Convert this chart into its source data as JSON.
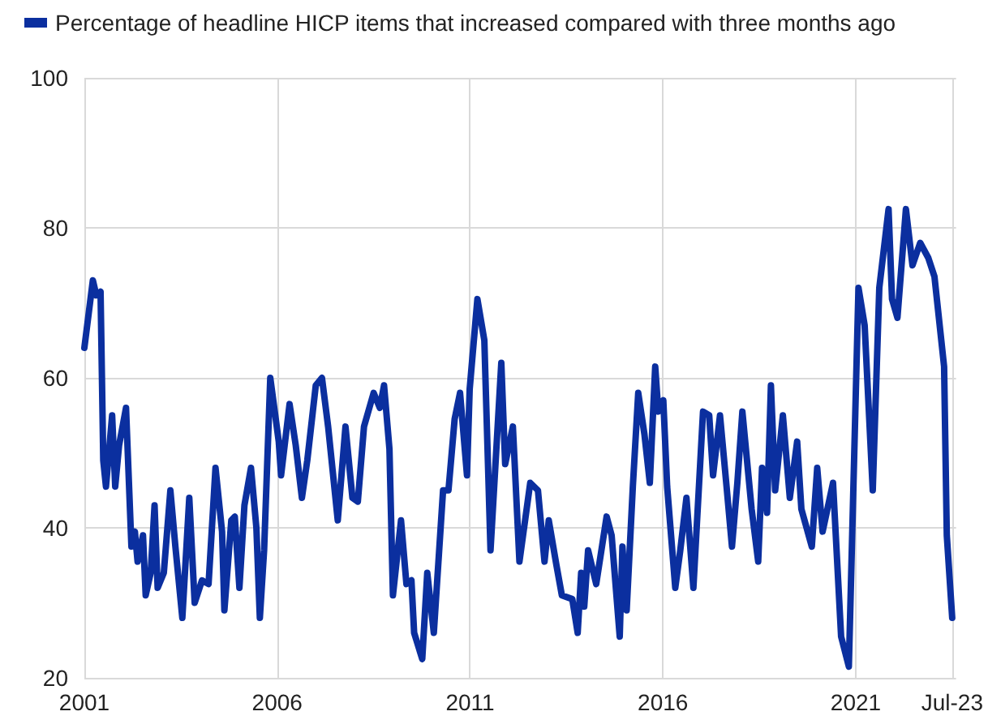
{
  "chart_data": {
    "type": "line",
    "xlim": [
      2001,
      2023.6
    ],
    "xticks": [
      2001,
      2006,
      2011,
      2016,
      2021,
      {
        "value": 2023.5,
        "label": "Jul-23"
      }
    ],
    "ylim": [
      20,
      100
    ],
    "yticks": [
      20,
      40,
      60,
      80,
      100
    ],
    "grid": true,
    "legend": "top left",
    "marker": "none",
    "line_style": "solid",
    "x": [
      2001.0,
      2001.22,
      2001.31,
      2001.42,
      2001.49,
      2001.56,
      2001.72,
      2001.8,
      2001.9,
      2002.08,
      2002.22,
      2002.31,
      2002.38,
      2002.52,
      2002.59,
      2002.72,
      2002.82,
      2002.9,
      2003.06,
      2003.23,
      2003.36,
      2003.54,
      2003.72,
      2003.86,
      2004.05,
      2004.22,
      2004.4,
      2004.57,
      2004.63,
      2004.81,
      2004.9,
      2005.02,
      2005.15,
      2005.32,
      2005.46,
      2005.55,
      2005.66,
      2005.82,
      2006.04,
      2006.1,
      2006.32,
      2006.48,
      2006.64,
      2006.78,
      2007.0,
      2007.16,
      2007.32,
      2007.57,
      2007.77,
      2007.95,
      2008.09,
      2008.25,
      2008.5,
      2008.66,
      2008.77,
      2008.91,
      2009.0,
      2009.21,
      2009.35,
      2009.48,
      2009.55,
      2009.76,
      2009.89,
      2010.06,
      2010.3,
      2010.44,
      2010.6,
      2010.74,
      2010.92,
      2010.99,
      2011.19,
      2011.37,
      2011.53,
      2011.81,
      2011.91,
      2012.11,
      2012.28,
      2012.56,
      2012.76,
      2012.93,
      2013.04,
      2013.24,
      2013.38,
      2013.65,
      2013.79,
      2013.88,
      2013.96,
      2014.06,
      2014.27,
      2014.54,
      2014.67,
      2014.88,
      2014.95,
      2015.06,
      2015.22,
      2015.36,
      2015.52,
      2015.66,
      2015.8,
      2015.88,
      2016.01,
      2016.11,
      2016.32,
      2016.45,
      2016.61,
      2016.79,
      2017.04,
      2017.2,
      2017.3,
      2017.48,
      2017.65,
      2017.79,
      2017.93,
      2018.06,
      2018.3,
      2018.47,
      2018.57,
      2018.7,
      2018.8,
      2018.91,
      2019.11,
      2019.29,
      2019.48,
      2019.59,
      2019.86,
      2020.0,
      2020.14,
      2020.41,
      2020.62,
      2020.82,
      2021.07,
      2021.23,
      2021.44,
      2021.61,
      2021.85,
      2021.94,
      2022.08,
      2022.3,
      2022.47,
      2022.67,
      2022.88,
      2023.04,
      2023.29,
      2023.36,
      2023.5
    ],
    "series": [
      {
        "name": "Percentage of headline HICP items that increased compared with three months ago",
        "color": "#0b2f9f",
        "values": [
          64,
          73,
          71,
          71.5,
          49,
          45.5,
          55,
          45.5,
          51,
          56,
          37.5,
          39.5,
          35.5,
          39,
          31,
          34,
          43,
          32,
          34,
          45,
          37.5,
          28,
          44,
          30,
          33,
          32.5,
          48,
          39.5,
          29,
          41,
          41.5,
          32,
          43,
          48,
          40,
          28,
          37,
          60,
          51.5,
          47,
          56.5,
          51,
          44,
          49,
          59,
          60,
          53.5,
          41,
          53.5,
          44,
          43.5,
          53.5,
          58,
          56,
          59,
          50.5,
          31,
          41,
          32.5,
          33,
          26,
          22.5,
          34,
          26,
          45,
          45,
          54.5,
          58,
          47,
          58.5,
          70.5,
          65,
          37,
          62,
          48.5,
          53.5,
          35.5,
          46,
          45,
          35.5,
          41,
          35,
          31,
          30.5,
          26,
          34,
          29.5,
          37,
          32.5,
          41.5,
          39,
          25.5,
          37.5,
          29,
          45.5,
          58,
          52.5,
          46,
          61.5,
          55.5,
          57,
          45.5,
          32,
          37,
          44,
          32,
          55.5,
          55,
          47,
          55,
          45.5,
          37.5,
          46,
          55.5,
          42.5,
          35.5,
          48,
          42,
          59,
          45,
          55,
          44,
          51.5,
          42.5,
          37.5,
          48,
          39.5,
          46,
          25.5,
          21.5,
          72,
          67,
          45,
          72,
          82.5,
          70.5,
          68,
          82.5,
          75,
          78,
          76,
          73.5,
          61.5,
          39,
          28
        ]
      }
    ]
  }
}
